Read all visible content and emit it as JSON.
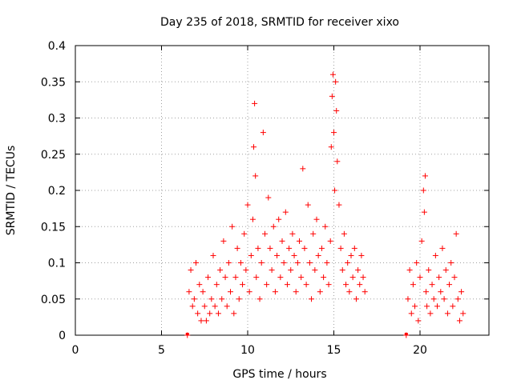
{
  "chart_data": {
    "type": "scatter",
    "title": "Day 235 of 2018, SRMTID for receiver xixo",
    "xlabel": "GPS time / hours",
    "ylabel": "SRMTID / TECUs",
    "xlim": [
      0,
      24
    ],
    "ylim": [
      0,
      0.4
    ],
    "x_ticks": [
      0,
      5,
      10,
      15,
      20
    ],
    "y_ticks": [
      0,
      0.05,
      0.1,
      0.15,
      0.2,
      0.25,
      0.3,
      0.35,
      0.4
    ],
    "x_tick_labels": [
      "0",
      "5",
      "10",
      "15",
      "20"
    ],
    "y_tick_labels": [
      "0",
      "0.05",
      "0.1",
      "0.15",
      "0.2",
      "0.25",
      "0.3",
      "0.35",
      "0.4"
    ],
    "grid": true,
    "marker": "+",
    "color": "#ff0000",
    "series": [
      {
        "name": "SRMTID",
        "x": [
          6.5,
          6.6,
          6.7,
          6.8,
          6.9,
          7.0,
          7.1,
          7.2,
          7.3,
          7.4,
          7.5,
          7.6,
          7.7,
          7.8,
          7.9,
          8.0,
          8.1,
          8.2,
          8.3,
          8.4,
          8.5,
          8.6,
          8.7,
          8.8,
          8.9,
          9.0,
          9.1,
          9.2,
          9.3,
          9.4,
          9.5,
          9.6,
          9.7,
          9.8,
          9.9,
          10.0,
          10.1,
          10.2,
          10.3,
          10.35,
          10.4,
          10.45,
          10.5,
          10.6,
          10.7,
          10.8,
          10.9,
          11.0,
          11.1,
          11.2,
          11.3,
          11.4,
          11.5,
          11.6,
          11.7,
          11.8,
          11.9,
          12.0,
          12.1,
          12.2,
          12.3,
          12.4,
          12.5,
          12.6,
          12.7,
          12.8,
          12.9,
          13.0,
          13.1,
          13.2,
          13.3,
          13.4,
          13.5,
          13.6,
          13.7,
          13.8,
          13.9,
          14.0,
          14.1,
          14.2,
          14.3,
          14.4,
          14.5,
          14.6,
          14.7,
          14.8,
          14.85,
          14.9,
          14.95,
          15.0,
          15.05,
          15.1,
          15.15,
          15.2,
          15.3,
          15.4,
          15.5,
          15.6,
          15.7,
          15.8,
          15.9,
          16.0,
          16.1,
          16.2,
          16.3,
          16.4,
          16.5,
          16.6,
          16.7,
          16.8,
          19.2,
          19.3,
          19.4,
          19.5,
          19.6,
          19.7,
          19.8,
          19.9,
          20.0,
          20.1,
          20.2,
          20.25,
          20.3,
          20.35,
          20.4,
          20.5,
          20.6,
          20.7,
          20.8,
          20.9,
          21.0,
          21.1,
          21.2,
          21.3,
          21.4,
          21.5,
          21.6,
          21.7,
          21.8,
          21.9,
          22.0,
          22.1,
          22.2,
          22.3,
          22.4,
          22.5
        ],
        "values": [
          0.0,
          0.06,
          0.09,
          0.04,
          0.05,
          0.1,
          0.03,
          0.07,
          0.02,
          0.06,
          0.04,
          0.02,
          0.08,
          0.03,
          0.05,
          0.11,
          0.04,
          0.07,
          0.03,
          0.09,
          0.05,
          0.13,
          0.08,
          0.04,
          0.1,
          0.06,
          0.15,
          0.03,
          0.08,
          0.12,
          0.05,
          0.1,
          0.07,
          0.14,
          0.09,
          0.18,
          0.06,
          0.11,
          0.16,
          0.26,
          0.32,
          0.22,
          0.08,
          0.12,
          0.05,
          0.1,
          0.28,
          0.14,
          0.07,
          0.19,
          0.12,
          0.09,
          0.15,
          0.06,
          0.11,
          0.16,
          0.08,
          0.13,
          0.1,
          0.17,
          0.07,
          0.12,
          0.09,
          0.14,
          0.11,
          0.06,
          0.1,
          0.13,
          0.08,
          0.23,
          0.12,
          0.07,
          0.18,
          0.1,
          0.05,
          0.14,
          0.09,
          0.16,
          0.11,
          0.06,
          0.12,
          0.08,
          0.15,
          0.1,
          0.07,
          0.13,
          0.26,
          0.33,
          0.36,
          0.28,
          0.2,
          0.35,
          0.31,
          0.24,
          0.18,
          0.12,
          0.09,
          0.14,
          0.07,
          0.1,
          0.06,
          0.11,
          0.08,
          0.12,
          0.05,
          0.09,
          0.07,
          0.11,
          0.08,
          0.06,
          0.0,
          0.05,
          0.09,
          0.03,
          0.07,
          0.04,
          0.1,
          0.02,
          0.08,
          0.13,
          0.2,
          0.17,
          0.22,
          0.06,
          0.04,
          0.09,
          0.03,
          0.07,
          0.05,
          0.11,
          0.04,
          0.08,
          0.06,
          0.12,
          0.05,
          0.09,
          0.03,
          0.07,
          0.1,
          0.04,
          0.08,
          0.14,
          0.05,
          0.02,
          0.06,
          0.03
        ]
      }
    ],
    "baseline_markers": [
      6.5,
      19.2
    ]
  }
}
